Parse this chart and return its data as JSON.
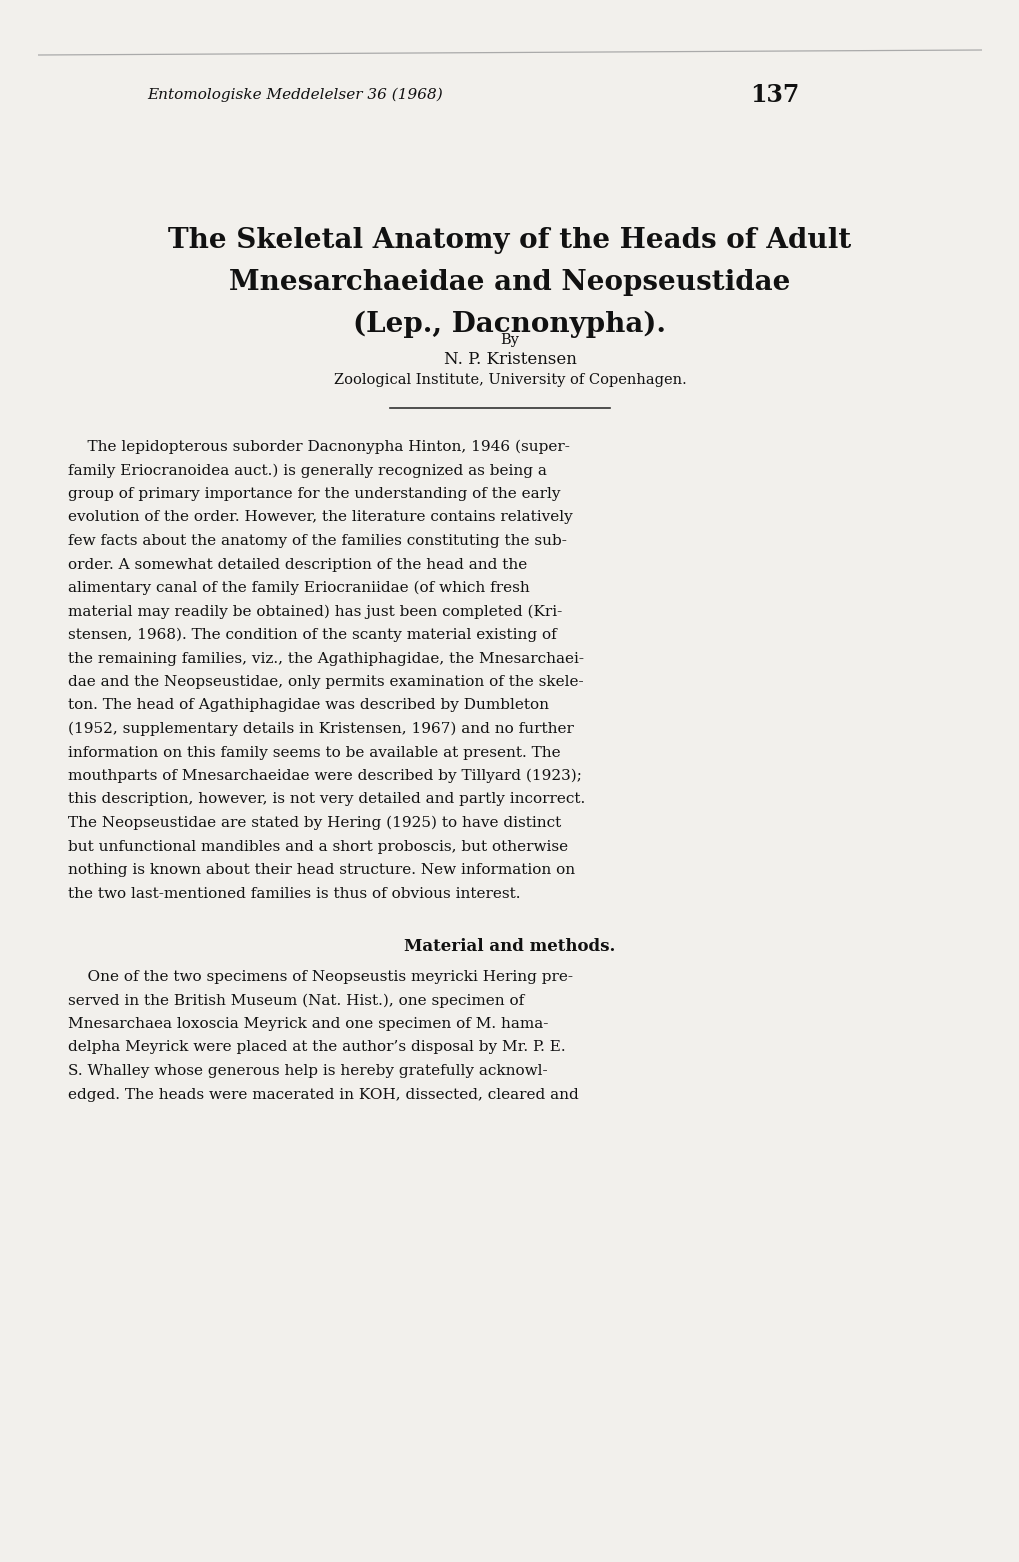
{
  "bg_color": "#f2f0ec",
  "text_color": "#111111",
  "header_journal": "Entomologiske Meddelelser 36 (1968)",
  "header_page": "137",
  "title_line1": "The Skeletal Anatomy of the Heads of Adult",
  "title_line2": "Mnesarchaeidae and Neopseustidae",
  "title_line3": "(Lep., Dacnonypha).",
  "by_text": "By",
  "author": "N. P. Kristensen",
  "institution": "Zoological Institute, University of Copenhagen.",
  "body_paragraph": "    The lepidopterous suborder Dacnonypha Hinton, 1946 (super-\nfamily Eriocranoidea auct.) is generally recognized as being a\ngroup of primary importance for the understanding of the early\nevolution of the order. However, the literature contains relatively\nfew facts about the anatomy of the families constituting the sub-\norder. A somewhat detailed description of the head and the\nalimentary canal of the family Eriocraniidae (of which fresh\nmaterial may readily be obtained) has just been completed (Kri-\nstensen, 1968). The condition of the scanty material existing of\nthe remaining families, viz., the Agathiphagidae, the Mnesarchaei-\ndae and the Neopseustidae, only permits examination of the skele-\nton. The head of Agathiphagidae was described by Dumbleton\n(1952, supplementary details in Kristensen, 1967) and no further\ninformation on this family seems to be available at present. The\nmouthparts of Mnesarchaeidae were described by Tillyard (1923);\nthis description, however, is not very detailed and partly incorrect.\nThe Neopseustidae are stated by Hering (1925) to have distinct\nbut unfunctional mandibles and a short proboscis, but otherwise\nnothing is known about their head structure. New information on\nthe two last-mentioned families is thus of obvious interest.",
  "section_title": "Material and methods.",
  "section_paragraph": "    One of the two specimens of Neopseustis meyricki Hering pre-\nserved in the British Museum (Nat. Hist.), one specimen of\nMnesarchaea loxoscia Meyrick and one specimen of M. hama-\ndelpha Meyrick were placed at the author’s disposal by Mr. P. E.\nS. Whalley whose generous help is hereby gratefully acknowl-\nedged. The heads were macerated in KOH, dissected, cleared and"
}
